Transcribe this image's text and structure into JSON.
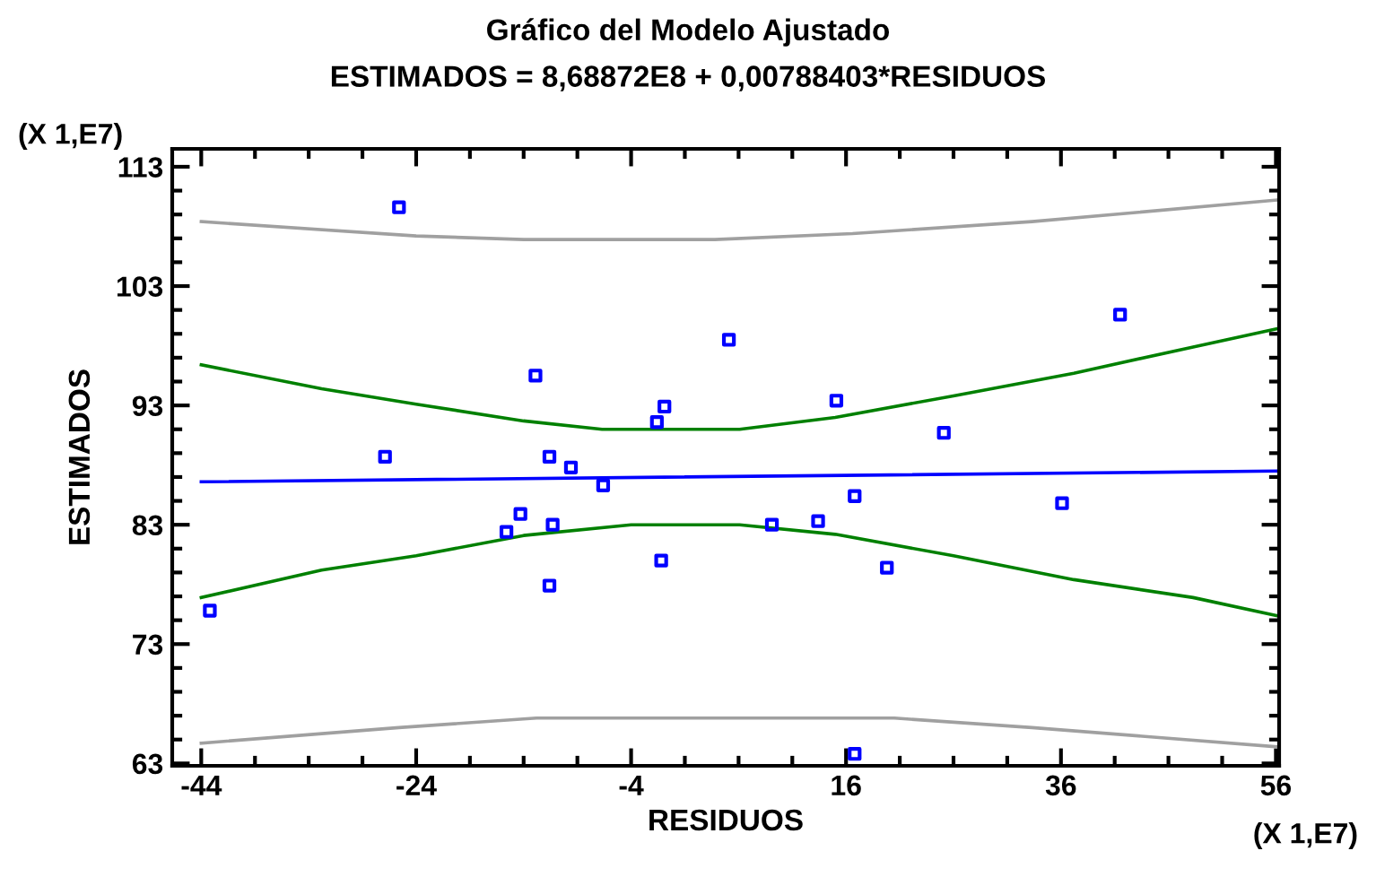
{
  "chart_data": {
    "type": "scatter",
    "title": "Gráfico del Modelo Ajustado",
    "subtitle": "ESTIMADOS = 8,68872E8 + 0,00788403*RESIDUOS",
    "xlabel": "RESIDUOS",
    "ylabel": "ESTIMADOS",
    "annotations": [
      "(X 1,E7)",
      "(X 1,E7)"
    ],
    "xlim": [
      -46.7,
      56.3
    ],
    "ylim": [
      62.8,
      114.5
    ],
    "xticks": [
      -44,
      -24,
      -4,
      16,
      36,
      56,
      {
        "value": -39,
        "label": null
      },
      {
        "value": -34,
        "label": null
      },
      {
        "value": -29,
        "label": null
      },
      {
        "value": -19,
        "label": null
      },
      {
        "value": -14,
        "label": null
      },
      {
        "value": -9,
        "label": null
      },
      {
        "value": 1,
        "label": null
      },
      {
        "value": 6,
        "label": null
      },
      {
        "value": 11,
        "label": null
      },
      {
        "value": 21,
        "label": null
      },
      {
        "value": 26,
        "label": null
      },
      {
        "value": 31,
        "label": null
      },
      {
        "value": 41,
        "label": null
      },
      {
        "value": 46,
        "label": null
      },
      {
        "value": 51,
        "label": null
      }
    ],
    "yticks": [
      63,
      73,
      83,
      93,
      103,
      113,
      {
        "value": 65,
        "label": null
      },
      {
        "value": 67,
        "label": null
      },
      {
        "value": 69,
        "label": null
      },
      {
        "value": 71,
        "label": null
      },
      {
        "value": 75,
        "label": null
      },
      {
        "value": 77,
        "label": null
      },
      {
        "value": 79,
        "label": null
      },
      {
        "value": 81,
        "label": null
      },
      {
        "value": 85,
        "label": null
      },
      {
        "value": 87,
        "label": null
      },
      {
        "value": 89,
        "label": null
      },
      {
        "value": 91,
        "label": null
      },
      {
        "value": 95,
        "label": null
      },
      {
        "value": 97,
        "label": null
      },
      {
        "value": 99,
        "label": null
      },
      {
        "value": 101,
        "label": null
      },
      {
        "value": 105,
        "label": null
      },
      {
        "value": 107,
        "label": null
      },
      {
        "value": 109,
        "label": null
      },
      {
        "value": 111,
        "label": null
      }
    ],
    "grid": false,
    "legend": false,
    "series": [
      {
        "type": "line",
        "color": "#a0a0a0",
        "x": [
          -44,
          -24,
          -14,
          3.8,
          16.6,
          33.3,
          56
        ],
        "values": [
          108.4,
          107.2,
          106.9,
          106.9,
          107.4,
          108.4,
          110.2
        ]
      },
      {
        "type": "line",
        "color": "#008000",
        "x": [
          -44,
          -32.8,
          -24,
          -14,
          -6.7,
          6.1,
          15,
          26,
          37.2,
          48.3,
          56
        ],
        "values": [
          96.4,
          94.4,
          93.1,
          91.7,
          91.0,
          91.0,
          92.0,
          93.8,
          95.7,
          97.9,
          99.4
        ]
      },
      {
        "type": "line",
        "color": "#0000ff",
        "x": [
          -44,
          56
        ],
        "values": [
          86.6,
          87.5
        ]
      },
      {
        "type": "line",
        "color": "#008000",
        "x": [
          -44,
          -32.8,
          -24,
          -14,
          -4,
          6.1,
          15,
          26,
          37.2,
          48.3,
          56
        ],
        "values": [
          76.9,
          79.2,
          80.4,
          82.1,
          83.0,
          83.0,
          82.2,
          80.4,
          78.4,
          76.9,
          75.4
        ]
      },
      {
        "type": "line",
        "color": "#a0a0a0",
        "x": [
          -44,
          -25.6,
          -12.8,
          20.5,
          33.3,
          56
        ],
        "values": [
          64.7,
          66.0,
          66.8,
          66.8,
          66.0,
          64.4
        ]
      },
      {
        "color": "#0000ff",
        "marker": "square",
        "x": [
          -25.6,
          -43.2,
          -26.9,
          -12.9,
          -11.6,
          -9.6,
          -6.6,
          -14.3,
          -15.6,
          -11.3,
          -11.6,
          -1.6,
          -0.9,
          -1.2,
          5.1,
          15.1,
          25.1,
          41.5,
          9.1,
          13.4,
          16.8,
          19.8,
          36.1,
          16.8
        ],
        "values": [
          109.6,
          75.8,
          88.7,
          95.5,
          88.7,
          87.8,
          86.3,
          83.9,
          82.4,
          83.0,
          77.9,
          91.6,
          92.9,
          80.0,
          98.5,
          93.4,
          90.7,
          100.6,
          83.0,
          83.3,
          85.4,
          79.4,
          84.8,
          63.8
        ]
      }
    ]
  }
}
